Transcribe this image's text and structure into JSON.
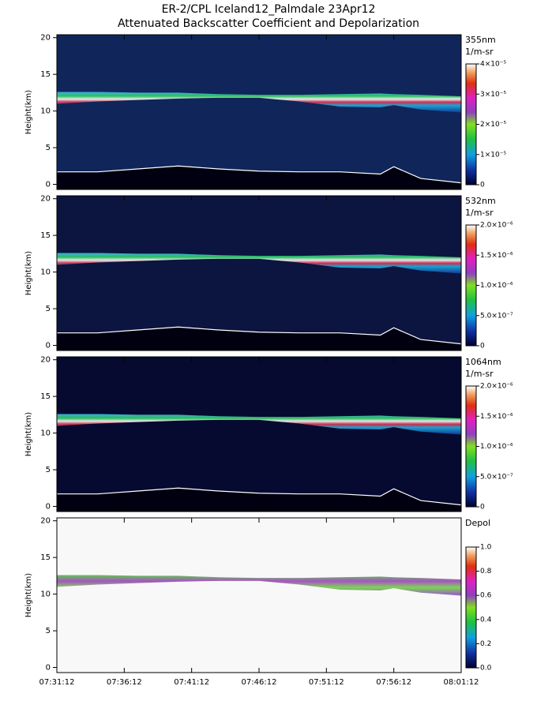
{
  "title": "ER-2/CPL Iceland12_Palmdale 23Apr12",
  "subtitle": "Attenuated Backscatter Coefficient and Depolarization",
  "chart_data": [
    {
      "type": "heatmap",
      "background": "#10265a",
      "ylabel": "Height(km)",
      "cbar_label": "355nm",
      "cbar_unit": "1/m-sr",
      "xlim": [
        0,
        30
      ],
      "ylim": [
        -0.7,
        20.4
      ],
      "yticks": [
        0,
        5,
        10,
        15,
        20
      ],
      "x": [
        0,
        3,
        6,
        9,
        12,
        15,
        18,
        21,
        24,
        25,
        27,
        30
      ],
      "cloud_top": [
        12.6,
        12.6,
        12.5,
        12.5,
        12.3,
        12.2,
        12.2,
        12.3,
        12.4,
        12.3,
        12.2,
        12.0
      ],
      "cloud_base": [
        11.0,
        11.3,
        11.5,
        11.7,
        11.8,
        11.8,
        11.3,
        10.6,
        10.5,
        10.8,
        10.2,
        9.8
      ],
      "surface": [
        1.7,
        1.7,
        2.1,
        2.5,
        2.1,
        1.8,
        1.7,
        1.7,
        1.4,
        2.4,
        0.8,
        0.2
      ],
      "clim": [
        0,
        4e-05
      ],
      "cticks": [
        {
          "value": 0,
          "label": "0"
        },
        {
          "value": 1e-05,
          "label": "1×10⁻⁵"
        },
        {
          "value": 2e-05,
          "label": "2×10⁻⁵"
        },
        {
          "value": 3e-05,
          "label": "3×10⁻⁵"
        },
        {
          "value": 4e-05,
          "label": "4×10⁻⁵"
        }
      ]
    },
    {
      "type": "heatmap",
      "background": "#0c1440",
      "ylabel": "Height(km)",
      "cbar_label": "532nm",
      "cbar_unit": "1/m-sr",
      "xlim": [
        0,
        30
      ],
      "ylim": [
        -0.7,
        20.4
      ],
      "yticks": [
        0,
        5,
        10,
        15,
        20
      ],
      "x": [
        0,
        3,
        6,
        9,
        12,
        15,
        18,
        21,
        24,
        25,
        27,
        30
      ],
      "cloud_top": [
        12.6,
        12.6,
        12.5,
        12.5,
        12.3,
        12.2,
        12.2,
        12.3,
        12.4,
        12.3,
        12.2,
        12.0
      ],
      "cloud_base": [
        11.0,
        11.3,
        11.5,
        11.7,
        11.8,
        11.8,
        11.3,
        10.6,
        10.5,
        10.8,
        10.2,
        9.8
      ],
      "surface": [
        1.7,
        1.7,
        2.1,
        2.5,
        2.1,
        1.8,
        1.7,
        1.7,
        1.4,
        2.4,
        0.8,
        0.2
      ],
      "clim": [
        0,
        2e-06
      ],
      "cticks": [
        {
          "value": 0,
          "label": "0"
        },
        {
          "value": 5e-07,
          "label": "5.0×10⁻⁷"
        },
        {
          "value": 1e-06,
          "label": "1.0×10⁻⁶"
        },
        {
          "value": 1.5e-06,
          "label": "1.5×10⁻⁶"
        },
        {
          "value": 2e-06,
          "label": "2.0×10⁻⁶"
        }
      ]
    },
    {
      "type": "heatmap",
      "background": "#060a30",
      "ylabel": "Height(km)",
      "cbar_label": "1064nm",
      "cbar_unit": "1/m-sr",
      "xlim": [
        0,
        30
      ],
      "ylim": [
        -0.7,
        20.4
      ],
      "yticks": [
        0,
        5,
        10,
        15,
        20
      ],
      "x": [
        0,
        3,
        6,
        9,
        12,
        15,
        18,
        21,
        24,
        25,
        27,
        30
      ],
      "cloud_top": [
        12.6,
        12.6,
        12.5,
        12.5,
        12.3,
        12.2,
        12.2,
        12.3,
        12.4,
        12.3,
        12.2,
        12.0
      ],
      "cloud_base": [
        11.0,
        11.3,
        11.5,
        11.7,
        11.8,
        11.8,
        11.3,
        10.6,
        10.5,
        10.8,
        10.2,
        9.8
      ],
      "surface": [
        1.7,
        1.7,
        2.1,
        2.5,
        2.1,
        1.8,
        1.7,
        1.7,
        1.4,
        2.4,
        0.8,
        0.2
      ],
      "clim": [
        0,
        2e-06
      ],
      "cticks": [
        {
          "value": 0,
          "label": "0"
        },
        {
          "value": 5e-07,
          "label": "5.0×10⁻⁷"
        },
        {
          "value": 1e-06,
          "label": "1.0×10⁻⁶"
        },
        {
          "value": 1.5e-06,
          "label": "1.5×10⁻⁶"
        },
        {
          "value": 2e-06,
          "label": "2.0×10⁻⁶"
        }
      ]
    },
    {
      "type": "heatmap",
      "background": "#f8f8f8",
      "ylabel": "Height(km)",
      "cbar_label": "Depol",
      "xlim": [
        0,
        30
      ],
      "ylim": [
        -0.7,
        20.4
      ],
      "yticks": [
        0,
        5,
        10,
        15,
        20
      ],
      "xticks": [
        {
          "value": 0,
          "label": "07:31:12"
        },
        {
          "value": 5,
          "label": "07:36:12"
        },
        {
          "value": 10,
          "label": "07:41:12"
        },
        {
          "value": 15,
          "label": "07:46:12"
        },
        {
          "value": 20,
          "label": "07:51:12"
        },
        {
          "value": 25,
          "label": "07:56:12"
        },
        {
          "value": 30,
          "label": "08:01:12"
        }
      ],
      "x": [
        0,
        3,
        6,
        9,
        12,
        15,
        18,
        21,
        24,
        25,
        27,
        30
      ],
      "cloud_top": [
        12.6,
        12.6,
        12.5,
        12.5,
        12.3,
        12.2,
        12.2,
        12.3,
        12.4,
        12.3,
        12.2,
        12.0
      ],
      "cloud_base": [
        11.0,
        11.3,
        11.5,
        11.7,
        11.8,
        11.8,
        11.3,
        10.6,
        10.5,
        10.8,
        10.2,
        9.8
      ],
      "clim": [
        0,
        1
      ],
      "cticks": [
        {
          "value": 0,
          "label": "0.0"
        },
        {
          "value": 0.2,
          "label": "0.2"
        },
        {
          "value": 0.4,
          "label": "0.4"
        },
        {
          "value": 0.6,
          "label": "0.6"
        },
        {
          "value": 0.8,
          "label": "0.8"
        },
        {
          "value": 1,
          "label": "1.0"
        }
      ]
    }
  ]
}
